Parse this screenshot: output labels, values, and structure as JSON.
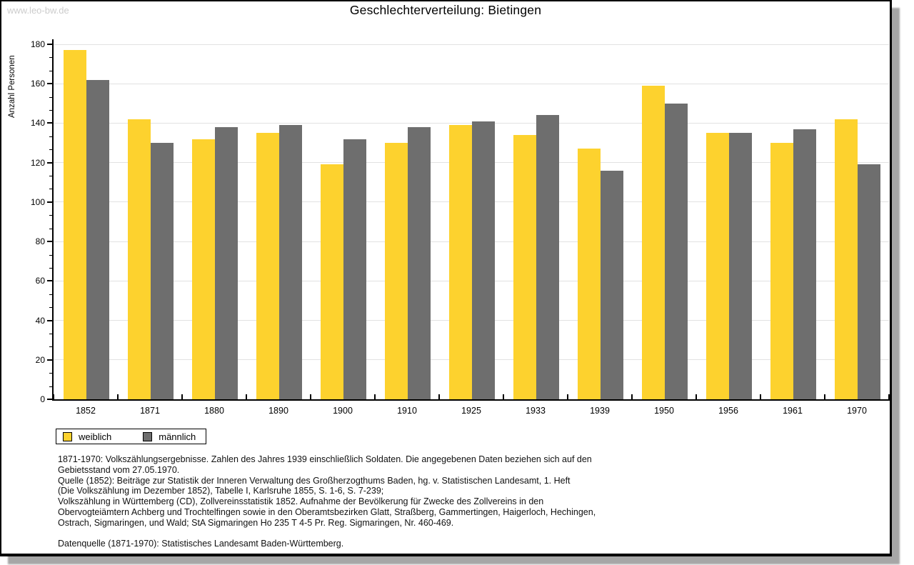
{
  "watermark": "www.leo-bw.de",
  "title": "Geschlechterverteilung: Bietingen",
  "chart_data": {
    "type": "bar",
    "title": "Geschlechterverteilung: Bietingen",
    "xlabel": "",
    "ylabel": "Anzahl Personen",
    "categories": [
      "1852",
      "1871",
      "1880",
      "1890",
      "1900",
      "1910",
      "1925",
      "1933",
      "1939",
      "1950",
      "1956",
      "1961",
      "1970"
    ],
    "series": [
      {
        "name": "weiblich",
        "color": "#fdd22e",
        "values": [
          177,
          142,
          132,
          135,
          119,
          130,
          139,
          134,
          127,
          159,
          135,
          130,
          142
        ]
      },
      {
        "name": "männlich",
        "color": "#6e6e6e",
        "values": [
          162,
          130,
          138,
          139,
          132,
          138,
          141,
          144,
          116,
          150,
          135,
          137,
          119
        ]
      }
    ],
    "ylim": [
      0,
      180
    ],
    "ytick_step": 20,
    "grid": true,
    "legend_position": "bottom-left"
  },
  "legend": {
    "items": [
      {
        "label": "weiblich",
        "color": "#fdd22e"
      },
      {
        "label": "männlich",
        "color": "#6e6e6e"
      }
    ]
  },
  "footnotes": {
    "lines": [
      "1871-1970: Volkszählungsergebnisse. Zahlen des Jahres 1939 einschließlich Soldaten. Die angegebenen Daten beziehen sich auf den",
      "Gebietsstand vom 27.05.1970.",
      "Quelle (1852): Beiträge zur Statistik der Inneren Verwaltung des Großherzogthums Baden, hg. v. Statistischen Landesamt, 1. Heft",
      "(Die Volkszählung im Dezember 1852), Tabelle I, Karlsruhe 1855, S. 1-6, S. 7-239;",
      "Volkszählung in Württemberg (CD), Zollvereinsstatistik 1852. Aufnahme der Bevölkerung für Zwecke des Zollvereins in den",
      "Obervogteiämtern Achberg und Trochtelfingen sowie in den Oberamtsbezirken Glatt, Straßberg, Gammertingen, Haigerloch, Hechingen,",
      "Ostrach, Sigmaringen, und Wald; StA Sigmaringen Ho 235 T 4-5 Pr. Reg. Sigmaringen, Nr. 460-469."
    ],
    "datasource": "Datenquelle (1871-1970): Statistisches Landesamt Baden-Württemberg."
  }
}
